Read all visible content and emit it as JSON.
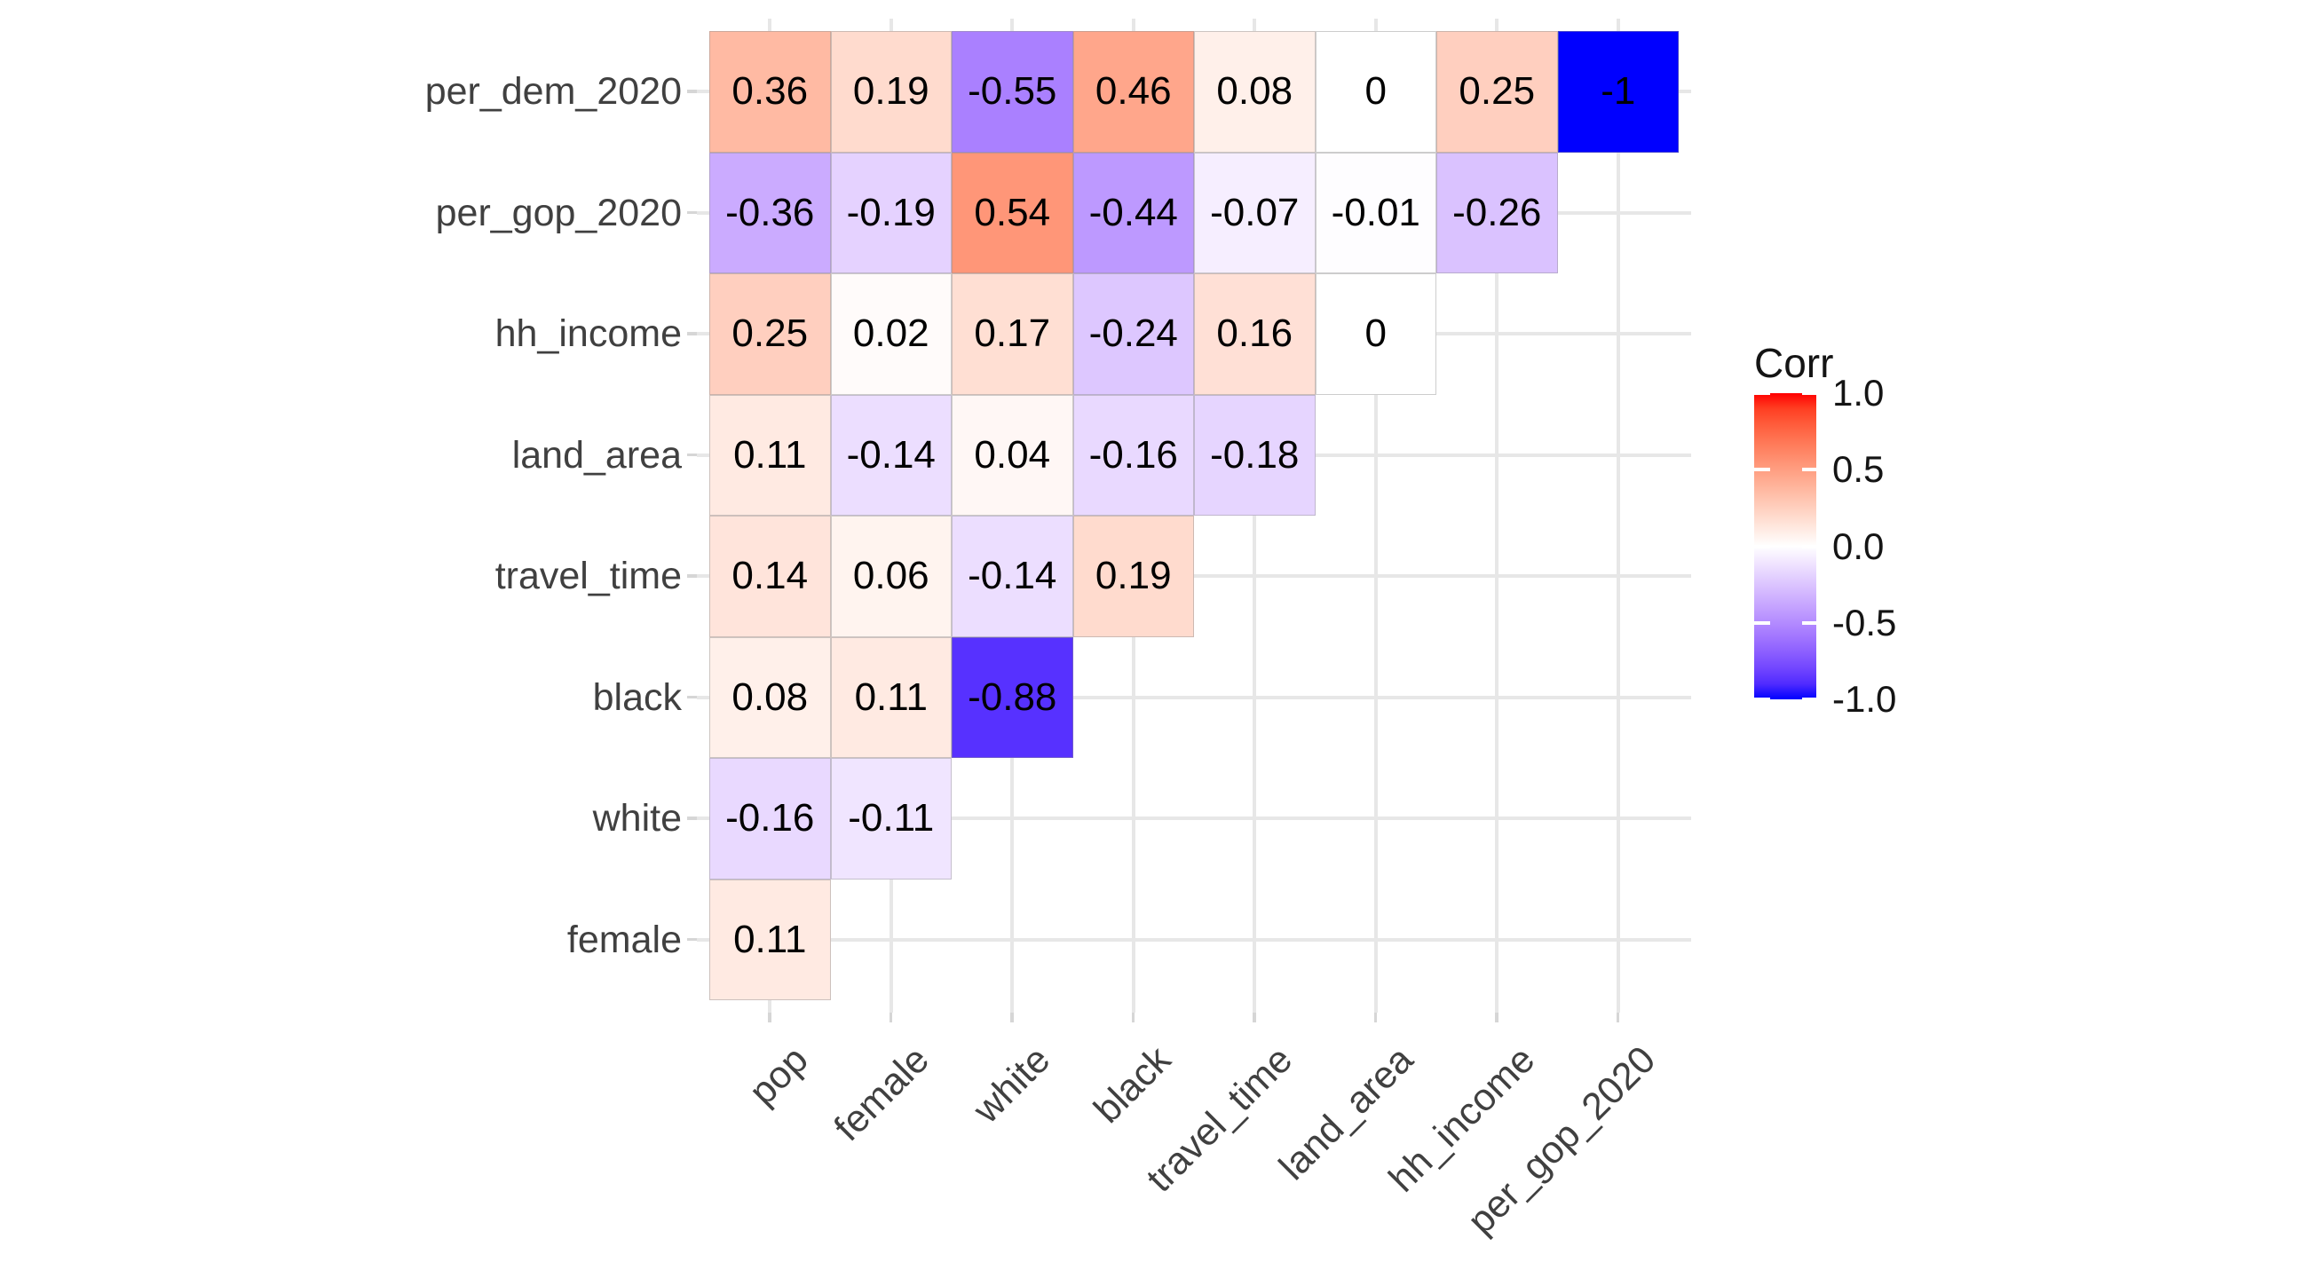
{
  "chart_data": {
    "type": "heatmap",
    "subtype": "correlation-matrix-lower-triangle",
    "x_categories": [
      "pop",
      "female",
      "white",
      "black",
      "travel_time",
      "land_area",
      "hh_income",
      "per_gop_2020"
    ],
    "y_categories": [
      "per_dem_2020",
      "per_gop_2020",
      "hh_income",
      "land_area",
      "travel_time",
      "black",
      "white",
      "female"
    ],
    "matrix": [
      [
        0.36,
        0.19,
        -0.55,
        0.46,
        0.08,
        0,
        0.25,
        -1
      ],
      [
        -0.36,
        -0.19,
        0.54,
        -0.44,
        -0.07,
        -0.01,
        -0.26,
        null
      ],
      [
        0.25,
        0.02,
        0.17,
        -0.24,
        0.16,
        0,
        null,
        null
      ],
      [
        0.11,
        -0.14,
        0.04,
        -0.16,
        -0.18,
        null,
        null,
        null
      ],
      [
        0.14,
        0.06,
        -0.14,
        0.19,
        null,
        null,
        null,
        null
      ],
      [
        0.08,
        0.11,
        -0.88,
        null,
        null,
        null,
        null,
        null
      ],
      [
        -0.16,
        -0.11,
        null,
        null,
        null,
        null,
        null,
        null
      ],
      [
        0.11,
        null,
        null,
        null,
        null,
        null,
        null,
        null
      ]
    ],
    "color_scale": {
      "low": "#0000FF",
      "mid": "#FFFFFF",
      "high": "#FF0000",
      "limits": [
        -1,
        1
      ],
      "interpolation": "lab"
    },
    "legend": {
      "title": "Corr",
      "position": "right",
      "tick_values": [
        1.0,
        0.5,
        0.0,
        -0.5,
        -1.0
      ],
      "tick_labels": [
        "1.0",
        "0.5",
        "0.0",
        "-0.5",
        "-1.0"
      ]
    },
    "grid": true,
    "colors": {
      "background": "#FFFFFF",
      "grid_line": "#E7E7E7",
      "tile_border": "#B9B9B9",
      "axis_text": "#404040",
      "tick_mark": "#D6D6D6",
      "cell_text": "#000000",
      "legend_text": "#141414"
    }
  }
}
